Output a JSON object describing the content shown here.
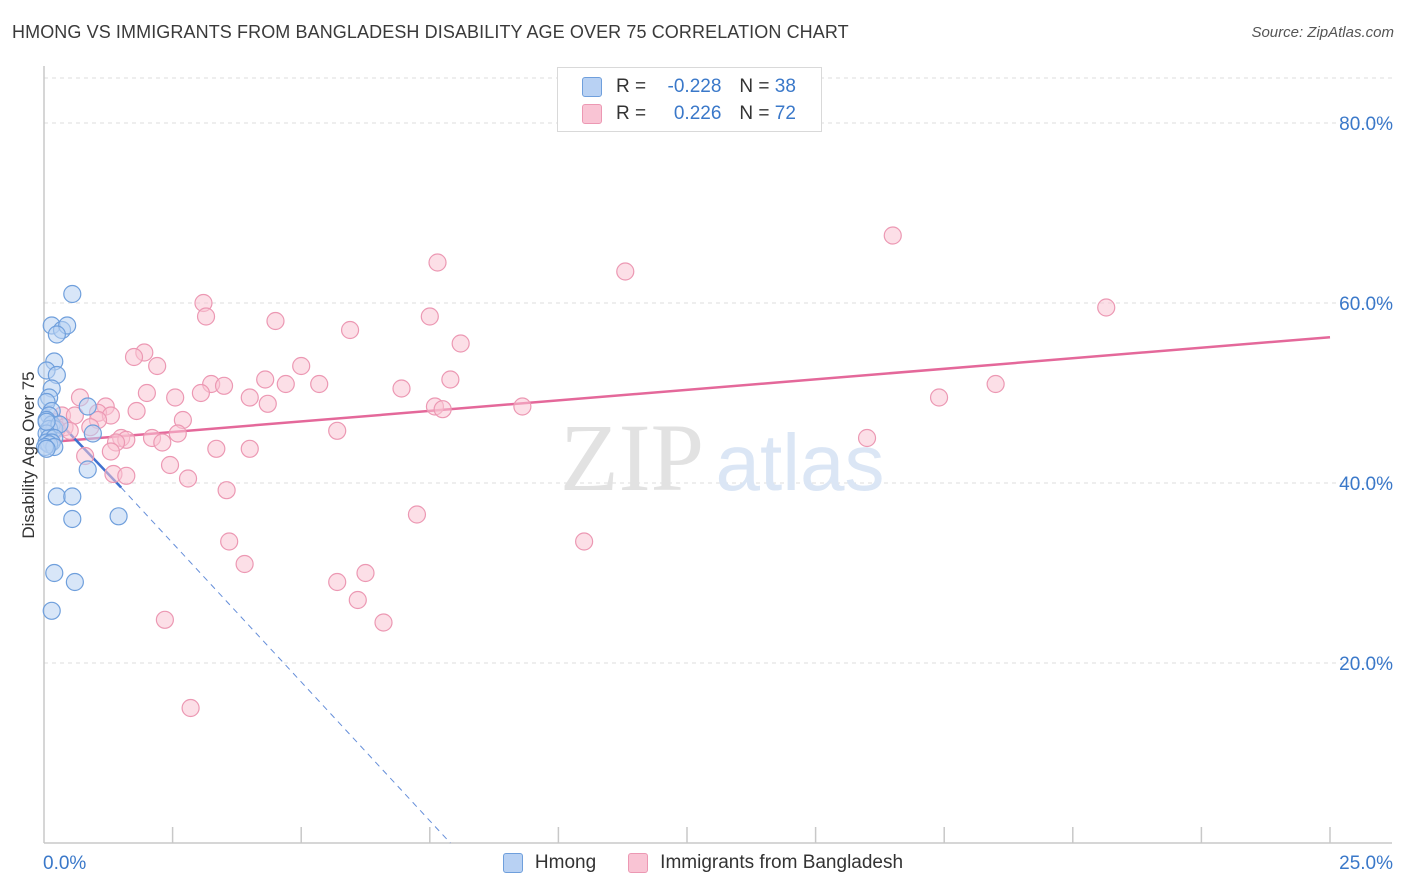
{
  "title": "HMONG VS IMMIGRANTS FROM BANGLADESH DISABILITY AGE OVER 75 CORRELATION CHART",
  "source": "Source: ZipAtlas.com",
  "watermark": {
    "zip": "ZIP",
    "atlas": "atlas"
  },
  "legend": {
    "r_label": "R =",
    "n_label": "N =",
    "rows": [
      {
        "r": "-0.228",
        "n": "38"
      },
      {
        "r": "0.226",
        "n": "72"
      }
    ]
  },
  "colors": {
    "hmong_fill": "#b8d1f3",
    "hmong_stroke": "#6f9fdc",
    "hmong_line": "#3f72d0",
    "bangladesh_fill": "#f9c4d4",
    "bangladesh_stroke": "#ec98b3",
    "bangladesh_line": "#e4689a",
    "axis_label": "#3a78c9",
    "grid": "#dcdcdc"
  },
  "chart_data": {
    "type": "scatter",
    "title": "HMONG VS IMMIGRANTS FROM BANGLADESH DISABILITY AGE OVER 75 CORRELATION CHART",
    "xlabel": "",
    "ylabel": "Disability Age Over 75",
    "xlim": [
      0,
      25
    ],
    "ylim": [
      0,
      85
    ],
    "x_tick_labels": [
      "0.0%",
      "25.0%"
    ],
    "y_ticks": [
      20,
      40,
      60,
      80
    ],
    "y_tick_labels": [
      "20.0%",
      "40.0%",
      "60.0%",
      "80.0%"
    ],
    "grid": true,
    "legend_position": "top-center",
    "series": [
      {
        "name": "Hmong",
        "r": -0.228,
        "n": 38,
        "points": [
          [
            0.55,
            61.0
          ],
          [
            0.15,
            57.5
          ],
          [
            0.35,
            57.0
          ],
          [
            0.45,
            57.5
          ],
          [
            0.25,
            56.5
          ],
          [
            0.2,
            53.5
          ],
          [
            0.05,
            52.5
          ],
          [
            0.25,
            52.0
          ],
          [
            0.15,
            50.5
          ],
          [
            0.1,
            49.5
          ],
          [
            0.05,
            49.0
          ],
          [
            0.15,
            48.0
          ],
          [
            0.1,
            47.5
          ],
          [
            0.85,
            48.5
          ],
          [
            0.05,
            47.0
          ],
          [
            0.15,
            46.5
          ],
          [
            0.2,
            46.0
          ],
          [
            0.1,
            46.0
          ],
          [
            0.3,
            46.5
          ],
          [
            0.05,
            45.5
          ],
          [
            0.1,
            45.0
          ],
          [
            0.2,
            45.0
          ],
          [
            0.05,
            44.5
          ],
          [
            0.15,
            44.5
          ],
          [
            0.1,
            44.3
          ],
          [
            0.2,
            44.0
          ],
          [
            0.02,
            44.0
          ],
          [
            0.05,
            43.8
          ],
          [
            0.95,
            45.5
          ],
          [
            0.85,
            41.5
          ],
          [
            0.25,
            38.5
          ],
          [
            0.55,
            38.5
          ],
          [
            0.55,
            36.0
          ],
          [
            1.45,
            36.3
          ],
          [
            0.2,
            30.0
          ],
          [
            0.6,
            29.0
          ],
          [
            0.15,
            25.8
          ],
          [
            0.05,
            46.8
          ]
        ],
        "trend": {
          "x": [
            0.0,
            1.5
          ],
          "y": [
            48.5,
            39.5
          ],
          "dashed_to": [
            7.9,
            0.0
          ]
        }
      },
      {
        "name": "Immigrants from Bangladesh",
        "r": 0.226,
        "n": 72,
        "points": [
          [
            16.5,
            67.5
          ],
          [
            7.65,
            64.5
          ],
          [
            11.3,
            63.5
          ],
          [
            3.1,
            60.0
          ],
          [
            20.65,
            59.5
          ],
          [
            3.15,
            58.5
          ],
          [
            7.5,
            58.5
          ],
          [
            4.5,
            58.0
          ],
          [
            5.95,
            57.0
          ],
          [
            8.1,
            55.5
          ],
          [
            1.95,
            54.5
          ],
          [
            1.75,
            54.0
          ],
          [
            2.2,
            53.0
          ],
          [
            5.0,
            53.0
          ],
          [
            4.3,
            51.5
          ],
          [
            3.25,
            51.0
          ],
          [
            4.7,
            51.0
          ],
          [
            7.9,
            51.5
          ],
          [
            3.5,
            50.8
          ],
          [
            5.35,
            51.0
          ],
          [
            18.5,
            51.0
          ],
          [
            6.95,
            50.5
          ],
          [
            2.0,
            50.0
          ],
          [
            3.05,
            50.0
          ],
          [
            2.55,
            49.5
          ],
          [
            0.7,
            49.5
          ],
          [
            4.0,
            49.5
          ],
          [
            17.4,
            49.5
          ],
          [
            4.35,
            48.8
          ],
          [
            1.2,
            48.5
          ],
          [
            9.3,
            48.5
          ],
          [
            7.6,
            48.5
          ],
          [
            7.75,
            48.2
          ],
          [
            1.8,
            48.0
          ],
          [
            1.05,
            47.8
          ],
          [
            0.35,
            47.5
          ],
          [
            0.6,
            47.5
          ],
          [
            1.3,
            47.5
          ],
          [
            1.05,
            47.0
          ],
          [
            0.2,
            46.8
          ],
          [
            2.7,
            47.0
          ],
          [
            0.4,
            46.2
          ],
          [
            0.9,
            46.2
          ],
          [
            0.25,
            46.0
          ],
          [
            0.5,
            45.8
          ],
          [
            5.7,
            45.8
          ],
          [
            2.6,
            45.5
          ],
          [
            2.1,
            45.0
          ],
          [
            16.0,
            45.0
          ],
          [
            1.5,
            45.0
          ],
          [
            1.6,
            44.8
          ],
          [
            1.4,
            44.5
          ],
          [
            2.3,
            44.5
          ],
          [
            3.35,
            43.8
          ],
          [
            4.0,
            43.8
          ],
          [
            1.3,
            43.5
          ],
          [
            0.8,
            43.0
          ],
          [
            2.45,
            42.0
          ],
          [
            1.35,
            41.0
          ],
          [
            1.6,
            40.8
          ],
          [
            2.8,
            40.5
          ],
          [
            3.55,
            39.2
          ],
          [
            7.25,
            36.5
          ],
          [
            10.5,
            33.5
          ],
          [
            3.6,
            33.5
          ],
          [
            3.9,
            31.0
          ],
          [
            6.25,
            30.0
          ],
          [
            5.7,
            29.0
          ],
          [
            6.1,
            27.0
          ],
          [
            6.6,
            24.5
          ],
          [
            2.35,
            24.8
          ],
          [
            2.85,
            15.0
          ]
        ],
        "trend": {
          "x": [
            0.0,
            25.0
          ],
          "y": [
            44.5,
            56.2
          ]
        }
      }
    ]
  }
}
